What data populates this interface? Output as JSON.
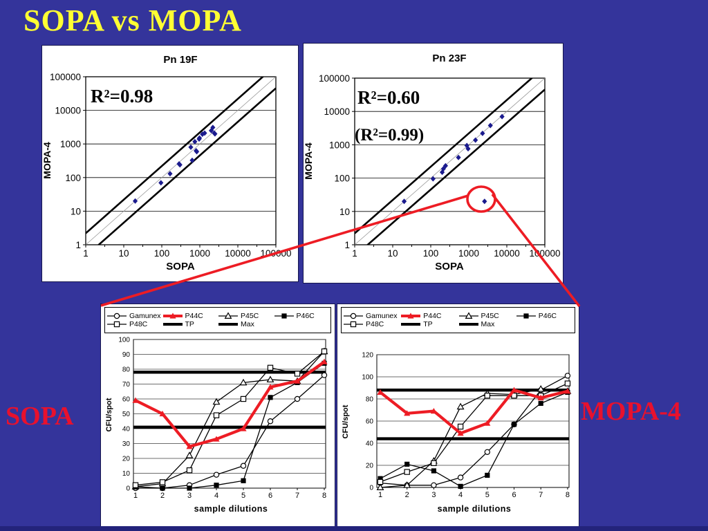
{
  "slide": {
    "title": "SOPA vs MOPA",
    "left_label": "SOPA",
    "right_label": "MOPA-4",
    "colors": {
      "background": "#34349b",
      "title_yellow": "#ffff33",
      "label_red": "#e8112d",
      "chart_red": "#ed1c24",
      "point_navy": "#1b1b8e"
    }
  },
  "chart_data": [
    {
      "id": "pn19f",
      "type": "scatter",
      "title": "Pn 19F",
      "xlabel": "SOPA",
      "ylabel": "MOPA-4",
      "annotations": [
        "R²=0.98"
      ],
      "x_scale": "log",
      "y_scale": "log",
      "xlim": [
        1,
        100000
      ],
      "ylim": [
        1,
        100000
      ],
      "x_ticks": [
        "1",
        "10",
        "100",
        "1000",
        "10000",
        "100000"
      ],
      "y_ticks": [
        "1",
        "10",
        "100",
        "1000",
        "10000",
        "100000"
      ],
      "band": {
        "center": "y = x",
        "fold": 2.2
      },
      "points": [
        [
          20,
          20
        ],
        [
          95,
          70
        ],
        [
          165,
          130
        ],
        [
          285,
          255
        ],
        [
          300,
          240
        ],
        [
          580,
          800
        ],
        [
          630,
          325
        ],
        [
          740,
          1170
        ],
        [
          800,
          630
        ],
        [
          830,
          590
        ],
        [
          960,
          1400
        ],
        [
          980,
          1500
        ],
        [
          1170,
          1950
        ],
        [
          1340,
          2100
        ],
        [
          2000,
          2500
        ],
        [
          2200,
          3100
        ],
        [
          2400,
          2100
        ],
        [
          2500,
          2000
        ]
      ]
    },
    {
      "id": "pn23f",
      "type": "scatter",
      "title": "Pn 23F",
      "xlabel": "SOPA",
      "ylabel": "MOPA-4",
      "annotations": [
        "R²=0.60",
        "(R²=0.99)"
      ],
      "x_scale": "log",
      "y_scale": "log",
      "xlim": [
        1,
        100000
      ],
      "ylim": [
        1,
        100000
      ],
      "x_ticks": [
        "1",
        "10",
        "100",
        "1000",
        "10000",
        "100000"
      ],
      "y_ticks": [
        "1",
        "10",
        "100",
        "1000",
        "10000",
        "100000"
      ],
      "band": {
        "center": "y = x",
        "fold": 2.2
      },
      "points": [
        [
          20,
          20
        ],
        [
          115,
          95
        ],
        [
          200,
          150
        ],
        [
          215,
          190
        ],
        [
          245,
          235
        ],
        [
          535,
          415
        ],
        [
          890,
          950
        ],
        [
          960,
          760
        ],
        [
          1500,
          1380
        ],
        [
          2300,
          2200
        ],
        [
          3700,
          3800
        ],
        [
          7500,
          7000
        ]
      ],
      "circled_point": [
        2600,
        20
      ]
    },
    {
      "id": "sopa_dil",
      "type": "line",
      "title": "",
      "xlabel": "sample dilutions",
      "ylabel": "CFU/spot",
      "x": [
        1,
        2,
        3,
        4,
        5,
        6,
        7,
        8
      ],
      "ylim": [
        0,
        100
      ],
      "y_step": 10,
      "series": [
        {
          "name": "Gamunex",
          "marker": "open-circle",
          "color": "#000000",
          "thick": false,
          "values": [
            0,
            0,
            2,
            9,
            15,
            45,
            60,
            76
          ]
        },
        {
          "name": "P44C",
          "marker": "red-triangle",
          "color": "#ed1c24",
          "thick": true,
          "values": [
            59,
            50,
            28,
            33,
            40,
            68,
            72,
            85
          ]
        },
        {
          "name": "P45C",
          "marker": "open-triangle",
          "color": "#000000",
          "thick": false,
          "values": [
            1,
            3,
            22,
            58,
            71,
            73,
            72,
            92
          ]
        },
        {
          "name": "P46C",
          "marker": "filled-square",
          "color": "#000000",
          "thick": false,
          "values": [
            1,
            0,
            0,
            2,
            5,
            61,
            71,
            84
          ]
        },
        {
          "name": "P48C",
          "marker": "open-square",
          "color": "#000000",
          "thick": false,
          "values": [
            2,
            4,
            12,
            49,
            60,
            81,
            77,
            92
          ]
        }
      ],
      "ref_lines": [
        {
          "name": "TP",
          "value": 41
        },
        {
          "name": "Max",
          "value": 78
        }
      ]
    },
    {
      "id": "mopa_dil",
      "type": "line",
      "title": "",
      "xlabel": "sample dilutions",
      "ylabel": "CFU/spot",
      "x": [
        1,
        2,
        3,
        4,
        5,
        6,
        7,
        8
      ],
      "ylim": [
        0,
        120
      ],
      "y_step": 20,
      "series": [
        {
          "name": "Gamunex",
          "marker": "open-circle",
          "color": "#000000",
          "thick": false,
          "values": [
            4,
            2,
            2,
            9,
            32,
            57,
            88,
            101
          ]
        },
        {
          "name": "P44C",
          "marker": "red-triangle",
          "color": "#ed1c24",
          "thick": true,
          "values": [
            86,
            67,
            69,
            49,
            58,
            88,
            81,
            87
          ]
        },
        {
          "name": "P45C",
          "marker": "open-triangle",
          "color": "#000000",
          "thick": false,
          "values": [
            0,
            2,
            24,
            73,
            85,
            84,
            89,
            87
          ]
        },
        {
          "name": "P46C",
          "marker": "filled-square",
          "color": "#000000",
          "thick": false,
          "values": [
            8,
            21,
            15,
            1,
            11,
            57,
            76,
            86
          ]
        },
        {
          "name": "P48C",
          "marker": "open-square",
          "color": "#000000",
          "thick": false,
          "values": [
            5,
            14,
            22,
            55,
            83,
            83,
            83,
            94
          ]
        }
      ],
      "ref_lines": [
        {
          "name": "TP",
          "value": 44
        },
        {
          "name": "Max",
          "value": 88
        }
      ]
    }
  ]
}
